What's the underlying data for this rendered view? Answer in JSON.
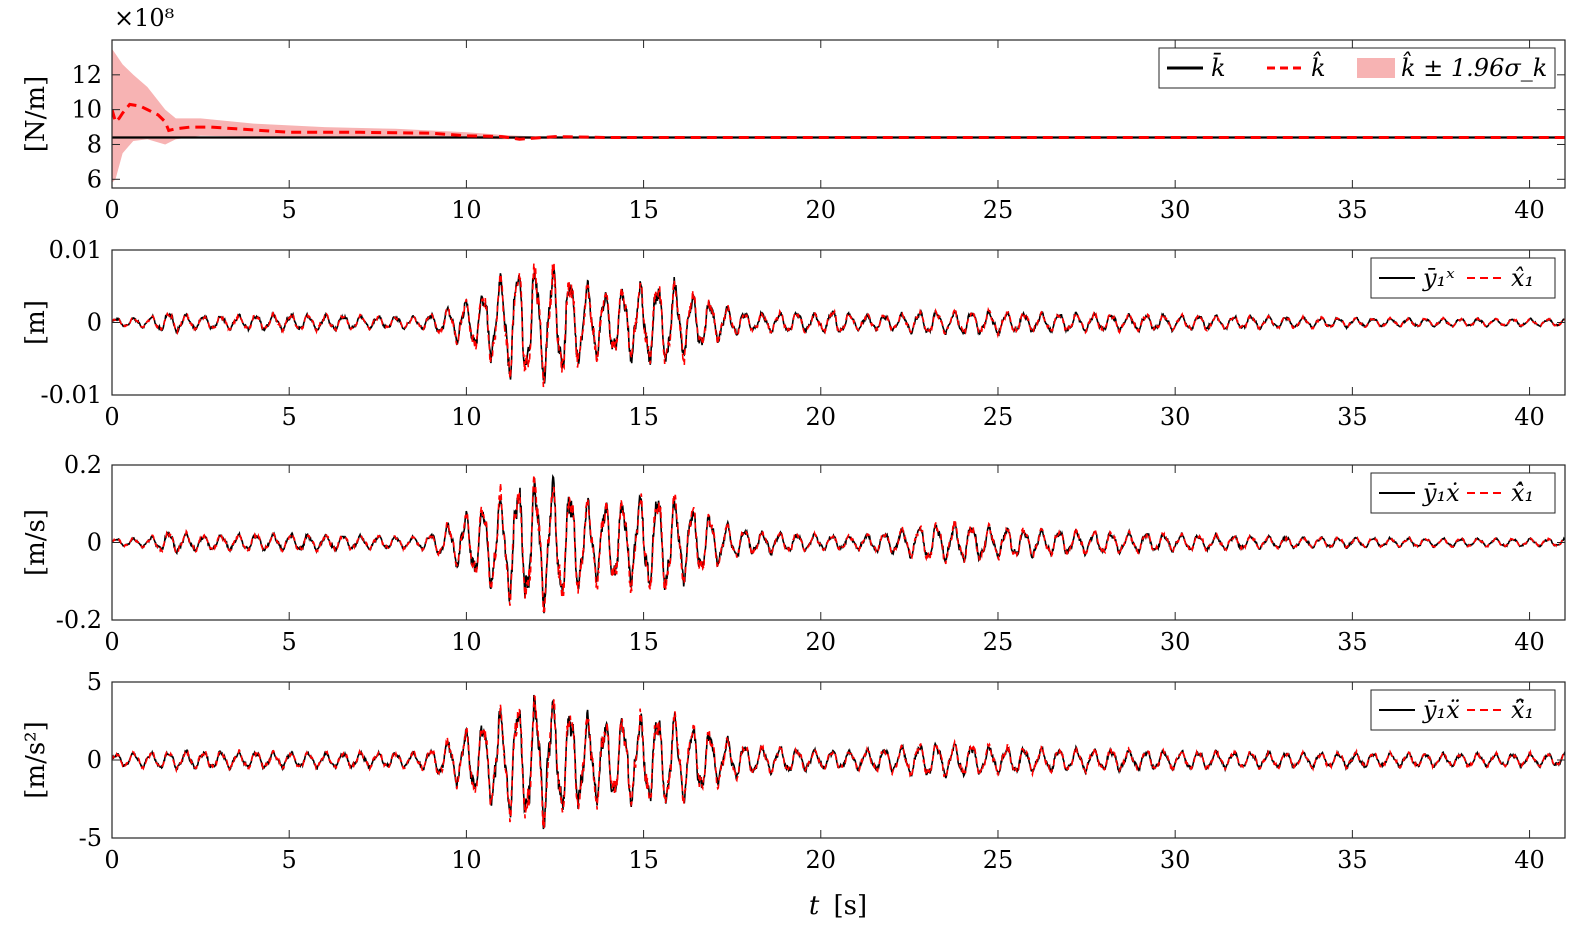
{
  "colors": {
    "measured": "#000000",
    "estimate": "#ff0000",
    "band": "#f7b3b3"
  },
  "chart_data": [
    {
      "id": "stiffness",
      "type": "line",
      "ylabel": "[N/m]",
      "exponent_label": "×10⁸",
      "ylim": [
        5.5,
        14
      ],
      "yticks": [
        6,
        8,
        10,
        12
      ],
      "xlim": [
        0,
        41
      ],
      "xticks": [
        0,
        5,
        10,
        15,
        20,
        25,
        30,
        35,
        40
      ],
      "legend_position": "top-right",
      "legend": [
        "k̄",
        "k̂",
        "k̂ ± 1.96σ_k"
      ],
      "series": [
        {
          "name": "k̄",
          "style": "solid",
          "x": [
            0,
            41
          ],
          "y": [
            8.4,
            8.4
          ]
        },
        {
          "name": "k̂",
          "style": "dashed",
          "x": [
            0,
            0.1,
            0.2,
            0.3,
            0.5,
            0.8,
            1.0,
            1.3,
            1.5,
            1.6,
            1.8,
            2.2,
            2.8,
            3.5,
            5,
            7,
            9,
            10,
            11,
            11.5,
            12.5,
            14,
            20,
            30,
            41
          ],
          "y": [
            10.0,
            9.3,
            9.5,
            9.8,
            10.3,
            10.2,
            10.0,
            9.7,
            9.3,
            8.8,
            8.9,
            9.0,
            9.0,
            8.9,
            8.7,
            8.7,
            8.65,
            8.5,
            8.45,
            8.3,
            8.45,
            8.4,
            8.4,
            8.4,
            8.4
          ]
        },
        {
          "name": "k̂ ± 1.96σ_k",
          "style": "band",
          "x": [
            0,
            0.1,
            0.3,
            0.6,
            1.0,
            1.5,
            1.8,
            2.5,
            4,
            6,
            8,
            10,
            11,
            12,
            14,
            41
          ],
          "upper": [
            13.5,
            13.2,
            12.6,
            12.0,
            11.3,
            10.0,
            9.5,
            9.5,
            9.2,
            9.0,
            8.9,
            8.7,
            8.55,
            8.45,
            8.42,
            8.41
          ],
          "lower": [
            5.8,
            6.0,
            7.5,
            8.2,
            8.3,
            8.0,
            8.3,
            8.5,
            8.45,
            8.45,
            8.45,
            8.35,
            8.3,
            8.32,
            8.38,
            8.39
          ]
        }
      ]
    },
    {
      "id": "displacement",
      "type": "line",
      "ylabel": "[m]",
      "ylim": [
        -0.01,
        0.01
      ],
      "yticks": [
        -0.01,
        0,
        0.01
      ],
      "ytick_labels": [
        "-0.01",
        "0",
        "0.01"
      ],
      "xlim": [
        0,
        41
      ],
      "xticks": [
        0,
        5,
        10,
        15,
        20,
        25,
        30,
        35,
        40
      ],
      "legend_position": "top-right",
      "legend": [
        "ȳ₁ˣ",
        "x̂₁"
      ],
      "envelope": {
        "t": [
          0,
          1,
          1.6,
          2.5,
          5,
          8.5,
          9,
          9.5,
          10.5,
          11.3,
          12,
          12.7,
          13.2,
          14,
          15,
          15.8,
          16.5,
          17.3,
          18,
          19,
          20,
          20.4,
          21,
          22,
          23,
          24,
          25,
          26,
          28,
          30,
          33,
          36,
          41
        ],
        "amp": [
          0.0006,
          0.0007,
          0.0015,
          0.0009,
          0.0012,
          0.0008,
          0.0012,
          0.002,
          0.0045,
          0.0075,
          0.008,
          0.0075,
          0.0055,
          0.0045,
          0.0055,
          0.006,
          0.004,
          0.0022,
          0.0012,
          0.0015,
          0.0012,
          0.0018,
          0.001,
          0.0011,
          0.0016,
          0.0016,
          0.0016,
          0.0013,
          0.0012,
          0.0011,
          0.0008,
          0.0006,
          0.0005
        ]
      },
      "series": [
        {
          "name": "ȳ₁ˣ",
          "style": "solid",
          "peak": 0.0078
        },
        {
          "name": "x̂₁",
          "style": "dashed",
          "peak": 0.0082
        }
      ]
    },
    {
      "id": "velocity",
      "type": "line",
      "ylabel": "[m/s]",
      "ylim": [
        -0.2,
        0.2
      ],
      "yticks": [
        -0.2,
        0,
        0.2
      ],
      "ytick_labels": [
        "-0.2",
        "0",
        "0.2"
      ],
      "xlim": [
        0,
        41
      ],
      "xticks": [
        0,
        5,
        10,
        15,
        20,
        25,
        30,
        35,
        40
      ],
      "legend_position": "top-right",
      "legend": [
        "ȳ₁ẋ",
        "x̂̇₁"
      ],
      "envelope": {
        "t": [
          0,
          1,
          1.6,
          2.5,
          5,
          8.5,
          9,
          9.5,
          10.5,
          11.5,
          12,
          12.7,
          13.2,
          14,
          15,
          15.5,
          16.5,
          17.3,
          18,
          19,
          20,
          21,
          22,
          23,
          24,
          25,
          26,
          28,
          30,
          33,
          36,
          41
        ],
        "amp": [
          0.01,
          0.012,
          0.03,
          0.02,
          0.022,
          0.015,
          0.022,
          0.05,
          0.1,
          0.155,
          0.16,
          0.15,
          0.12,
          0.1,
          0.12,
          0.13,
          0.09,
          0.05,
          0.03,
          0.025,
          0.02,
          0.018,
          0.03,
          0.048,
          0.05,
          0.04,
          0.035,
          0.028,
          0.022,
          0.015,
          0.012,
          0.01
        ]
      },
      "series": [
        {
          "name": "ȳ₁ẋ",
          "style": "solid",
          "peak": 0.16
        },
        {
          "name": "x̂̇₁",
          "style": "dashed",
          "peak": 0.175
        }
      ]
    },
    {
      "id": "acceleration",
      "type": "line",
      "ylabel": "[m/s²]",
      "ylim": [
        -5,
        5
      ],
      "yticks": [
        -5,
        0,
        5
      ],
      "ytick_labels": [
        "-5",
        "0",
        "5"
      ],
      "xlim": [
        0,
        41
      ],
      "xticks": [
        0,
        5,
        10,
        15,
        20,
        25,
        30,
        35,
        40
      ],
      "legend_position": "top-right",
      "legend": [
        "ȳ₁ẍ",
        "x̂̈₁"
      ],
      "envelope": {
        "t": [
          0,
          1,
          2,
          5,
          8.5,
          9,
          9.5,
          10.5,
          11.5,
          12,
          12.7,
          13.2,
          14,
          15,
          15.5,
          16.5,
          17.3,
          18,
          19,
          20,
          21,
          22,
          23,
          24,
          25,
          26,
          28,
          30,
          33,
          36,
          41
        ],
        "amp": [
          0.4,
          0.5,
          0.6,
          0.5,
          0.5,
          0.7,
          1.3,
          2.6,
          3.8,
          4.0,
          3.6,
          3.0,
          2.4,
          2.8,
          3.0,
          2.2,
          1.4,
          0.9,
          0.8,
          0.6,
          0.6,
          0.8,
          1.1,
          1.0,
          0.9,
          0.8,
          0.7,
          0.6,
          0.5,
          0.45,
          0.4
        ]
      },
      "series": [
        {
          "name": "ȳ₁ẍ",
          "style": "solid",
          "peak": 4.0
        },
        {
          "name": "x̂̈₁",
          "style": "dashed",
          "peak": 4.4
        }
      ]
    }
  ],
  "xlabel_var": "t",
  "xlabel_unit": "[s]"
}
